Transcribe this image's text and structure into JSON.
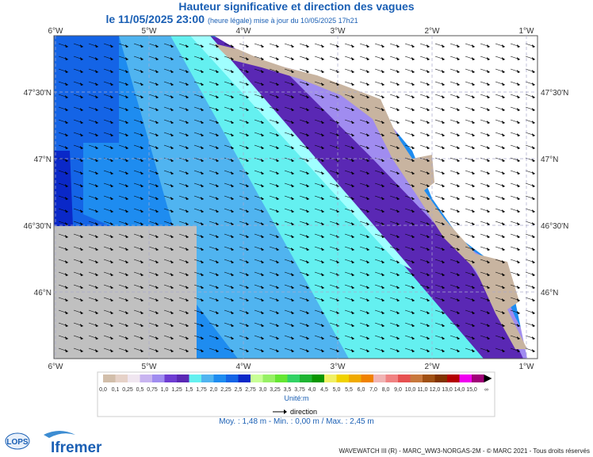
{
  "header": {
    "title": "Hauteur significative et direction des vagues",
    "date": "le 11/05/2025 23:00",
    "note": "(heure légale) mise à jour du 10/05/2025 17h21"
  },
  "map": {
    "lon_labels": [
      "6°W",
      "5°W",
      "4°W",
      "3°W",
      "2°W",
      "1°W"
    ],
    "lat_labels": [
      "47°30'N",
      "47°N",
      "46°30'N",
      "46°N"
    ]
  },
  "legend": {
    "bins": [
      {
        "label": "0,0",
        "color": "#d2beaa"
      },
      {
        "label": "0,1",
        "color": "#e6d2c8"
      },
      {
        "label": "0,25",
        "color": "#f0e6f0"
      },
      {
        "label": "0,5",
        "color": "#c8b4f0"
      },
      {
        "label": "0,75",
        "color": "#a08cf0"
      },
      {
        "label": "1,0",
        "color": "#6e3cd2"
      },
      {
        "label": "1,25",
        "color": "#5a28b4"
      },
      {
        "label": "1,5",
        "color": "#64f0f0"
      },
      {
        "label": "1,75",
        "color": "#50b4f0"
      },
      {
        "label": "2,0",
        "color": "#1e8cf0"
      },
      {
        "label": "2,25",
        "color": "#1464e6"
      },
      {
        "label": "2,5",
        "color": "#0a28c8"
      },
      {
        "label": "2,75",
        "color": "#c8ff96"
      },
      {
        "label": "3,0",
        "color": "#96f064"
      },
      {
        "label": "3,25",
        "color": "#64e632"
      },
      {
        "label": "3,5",
        "color": "#32d264"
      },
      {
        "label": "3,75",
        "color": "#1eb432"
      },
      {
        "label": "4,0",
        "color": "#0a9600"
      },
      {
        "label": "4,5",
        "color": "#f0f064"
      },
      {
        "label": "5,0",
        "color": "#f0d200"
      },
      {
        "label": "5,5",
        "color": "#f0aa00"
      },
      {
        "label": "6,0",
        "color": "#f08200"
      },
      {
        "label": "7,0",
        "color": "#f0b4b4"
      },
      {
        "label": "8,0",
        "color": "#f08282"
      },
      {
        "label": "9,0",
        "color": "#e65050"
      },
      {
        "label": "10,0",
        "color": "#c8783c"
      },
      {
        "label": "11,0",
        "color": "#a05014"
      },
      {
        "label": "12,0",
        "color": "#823200"
      },
      {
        "label": "13,0",
        "color": "#b40000"
      },
      {
        "label": "14,0",
        "color": "#f000f0"
      },
      {
        "label": "15,0",
        "color": "#a00078"
      },
      {
        "label": "∞",
        "color": "#000000"
      }
    ],
    "unit": "Unité:m",
    "direction": "direction",
    "stats": "Moy. : 1,48 m  -  Min. : 0,00 m / Max. : 2,45 m"
  },
  "footer": {
    "logo1": "LOPS",
    "logo2": "Ifremer",
    "credits": "WAVEWATCH III (R) - MARC_WW3-NORGAS-2M - © MARC 2021 - Tous droits réservés"
  }
}
